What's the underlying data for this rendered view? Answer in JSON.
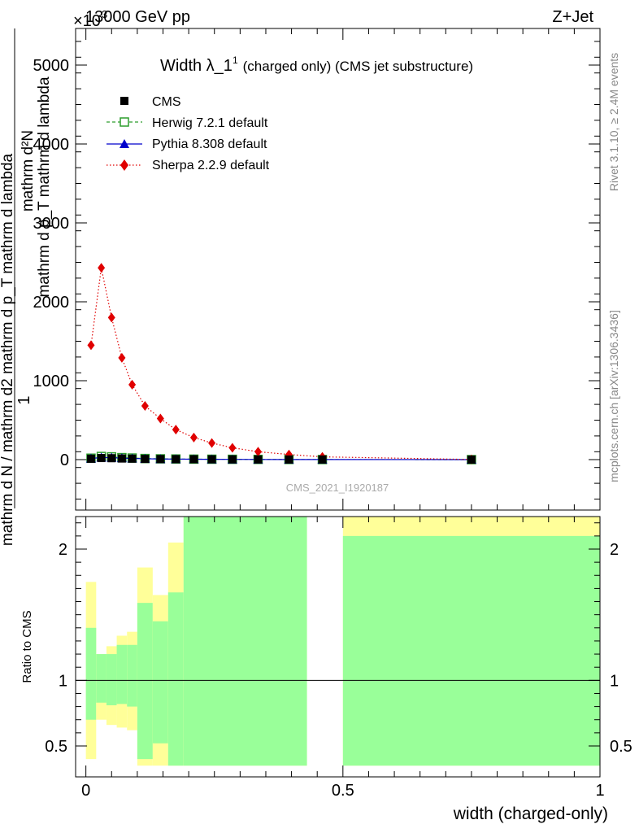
{
  "header": {
    "left": "13000 GeV pp",
    "right": "Z+Jet",
    "exponent": "×10",
    "exponent_power": "3"
  },
  "side_labels": {
    "rivet": "Rivet 3.1.10, ≥ 2.4M events",
    "mcplots": "mcplots.cern.ch [arXiv:1306.3436]"
  },
  "watermark": "CMS_2021_I1920187",
  "colors": {
    "cms": "#000000",
    "herwig": "#2d9e2d",
    "pythia": "#0000cc",
    "sherpa": "#e00000",
    "band_yellow": "#ffff99",
    "band_green": "#99ff99"
  },
  "chart_data": [
    {
      "type": "line",
      "title": "Width λ_1",
      "title_sup": "1",
      "title_suffix": "(charged only) (CMS jet substructure)",
      "ylabel_top": "1",
      "ylabel_bottom": "mathrm d N / mathrm d2 mathrm d p_T mathrm d lambda",
      "ylabel_numerator": "mathrm d²N",
      "ylabel_denominator": "mathrm d p_T mathrm d lambda",
      "xlim": [
        -0.02,
        1.0
      ],
      "ylim": [
        -650,
        5500
      ],
      "y_scale_factor": 1000,
      "yticks": [
        0,
        1000,
        2000,
        3000,
        4000,
        5000
      ],
      "ytick_labels": [
        "0",
        "1000",
        "2000",
        "3000",
        "4000",
        "5000"
      ],
      "legend_position": "top-left",
      "series": [
        {
          "name": "CMS",
          "marker": "square",
          "x": [
            0.01,
            0.03,
            0.05,
            0.07,
            0.09,
            0.115,
            0.145,
            0.175,
            0.21,
            0.245,
            0.285,
            0.335,
            0.395,
            0.46,
            0.75
          ],
          "y": [
            11,
            20,
            18,
            14,
            12,
            9,
            7,
            6,
            5,
            4,
            3,
            2,
            1,
            1,
            0
          ]
        },
        {
          "name": "Herwig 7.2.1 default",
          "marker": "open-square",
          "x": [
            0.01,
            0.03,
            0.05,
            0.07,
            0.09,
            0.115,
            0.145,
            0.175,
            0.21,
            0.245,
            0.285,
            0.335,
            0.395,
            0.46,
            0.75
          ],
          "y": [
            18,
            40,
            35,
            25,
            20,
            14,
            10,
            8,
            6,
            5,
            4,
            3,
            2,
            1,
            0
          ]
        },
        {
          "name": "Pythia 8.308 default",
          "marker": "triangle",
          "x": [
            0.01,
            0.03,
            0.05,
            0.07,
            0.09,
            0.115,
            0.145,
            0.175,
            0.21,
            0.245,
            0.285,
            0.335,
            0.395,
            0.46,
            0.75
          ],
          "y": [
            14,
            27,
            24,
            19,
            15,
            11,
            8,
            7,
            5,
            4,
            3,
            2,
            1,
            1,
            0
          ]
        },
        {
          "name": "Sherpa 2.2.9 default",
          "marker": "diamond",
          "x": [
            0.01,
            0.03,
            0.05,
            0.07,
            0.09,
            0.115,
            0.145,
            0.175,
            0.21,
            0.245,
            0.285,
            0.335,
            0.395,
            0.46,
            0.75
          ],
          "y": [
            1450,
            2430,
            1800,
            1290,
            950,
            680,
            520,
            380,
            280,
            210,
            150,
            100,
            65,
            35,
            2
          ]
        }
      ]
    },
    {
      "type": "area",
      "ylabel": "Ratio to CMS",
      "xlabel": "width (charged-only)",
      "xlim": [
        -0.02,
        1.0
      ],
      "ylim": [
        0.35,
        2.3
      ],
      "xticks": [
        0,
        0.5,
        1
      ],
      "xtick_labels": [
        "0",
        "0.5",
        "1"
      ],
      "yticks": [
        0.5,
        1,
        2
      ],
      "ytick_labels": [
        "0.5",
        "1",
        "2"
      ],
      "reference_line": 1,
      "bands": [
        {
          "x0": 0.0,
          "x1": 0.02,
          "yellow": [
            0.4,
            1.75
          ],
          "green": [
            0.7,
            1.4
          ]
        },
        {
          "x0": 0.02,
          "x1": 0.04,
          "yellow": [
            0.7,
            1.2
          ],
          "green": [
            0.83,
            1.2
          ]
        },
        {
          "x0": 0.04,
          "x1": 0.06,
          "yellow": [
            0.66,
            1.26
          ],
          "green": [
            0.81,
            1.2
          ]
        },
        {
          "x0": 0.06,
          "x1": 0.08,
          "yellow": [
            0.64,
            1.34
          ],
          "green": [
            0.82,
            1.27
          ]
        },
        {
          "x0": 0.08,
          "x1": 0.1,
          "yellow": [
            0.62,
            1.37
          ],
          "green": [
            0.8,
            1.27
          ]
        },
        {
          "x0": 0.1,
          "x1": 0.13,
          "yellow": [
            0.35,
            1.86
          ],
          "green": [
            0.4,
            1.59
          ]
        },
        {
          "x0": 0.13,
          "x1": 0.16,
          "yellow": [
            0.35,
            1.65
          ],
          "green": [
            0.52,
            1.45
          ]
        },
        {
          "x0": 0.16,
          "x1": 0.19,
          "yellow": [
            0.35,
            2.05
          ],
          "green": [
            0.35,
            1.67
          ]
        },
        {
          "x0": 0.19,
          "x1": 0.43,
          "yellow": [
            0.35,
            2.3
          ],
          "green": [
            0.35,
            2.3
          ]
        },
        {
          "x0": 0.5,
          "x1": 1.0,
          "yellow": [
            0.35,
            2.3
          ],
          "green": [
            0.35,
            2.1
          ]
        }
      ]
    }
  ]
}
